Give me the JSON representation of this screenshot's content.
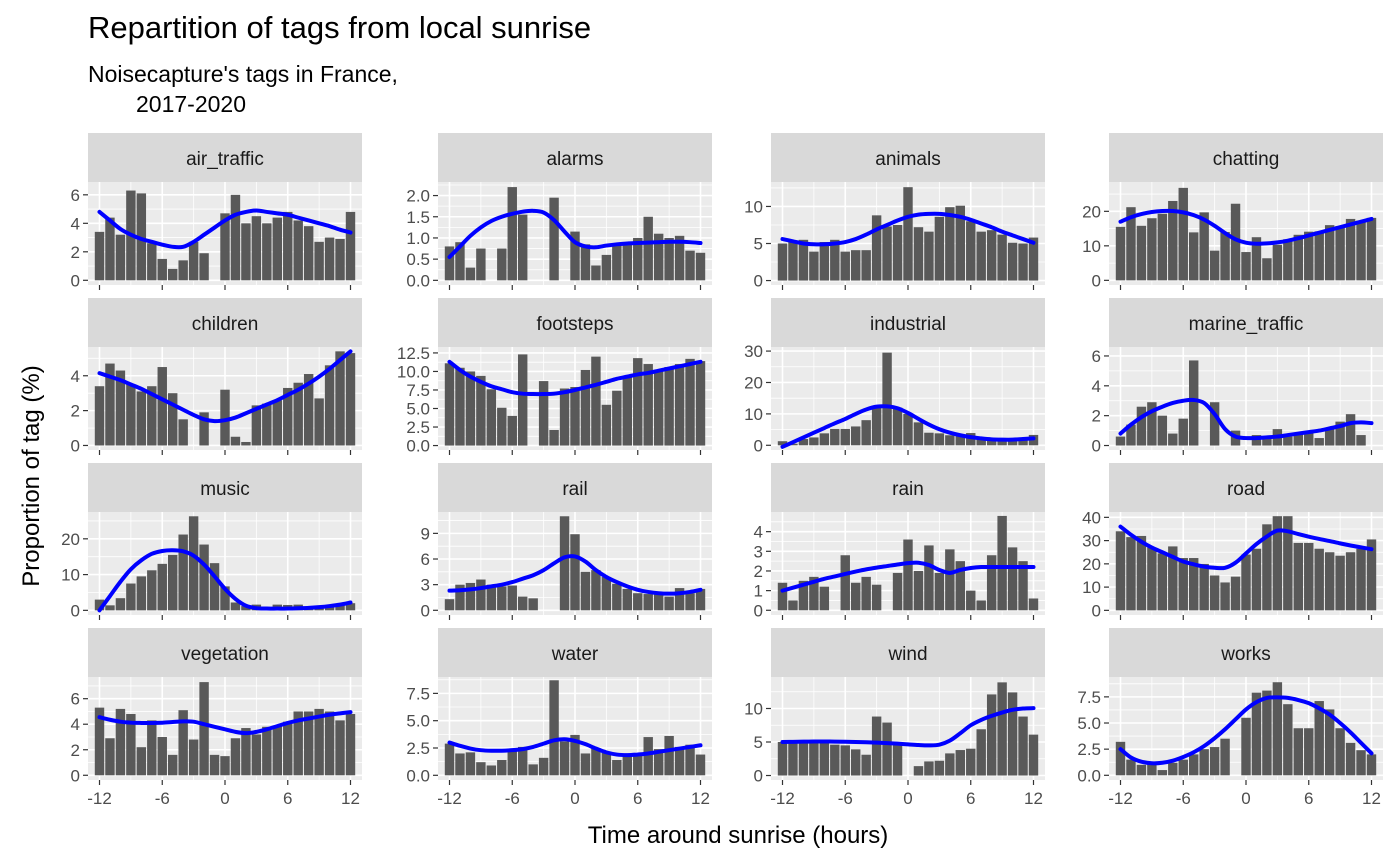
{
  "chart_data": {
    "type": "bar",
    "title": "Repartition of tags from local sunrise",
    "subtitle_lines": [
      "Noisecapture's tags in France,",
      "2017-2020"
    ],
    "xlabel": "Time around sunrise (hours)",
    "ylabel": "Proportion of tag (%)",
    "x_ticks": [
      -12,
      -6,
      0,
      6,
      12
    ],
    "x_tick_labels": [
      "-12",
      "-6",
      "0",
      "6",
      "12"
    ],
    "xlim": [
      -13.1,
      13.1
    ],
    "grid": true,
    "colors": {
      "bar": "#595959",
      "smooth": "#0000ff",
      "panel_bg": "#ebebeb",
      "grid": "#ffffff",
      "strip_bg": "#d9d9d9"
    },
    "x": [
      -12,
      -11,
      -10,
      -9,
      -8,
      -7,
      -6,
      -5,
      -4,
      -3,
      -2,
      -1,
      0,
      1,
      2,
      3,
      4,
      5,
      6,
      7,
      8,
      9,
      10,
      11,
      12
    ],
    "panels": [
      {
        "name": "air_traffic",
        "ylim": [
          -0.33,
          6.9
        ],
        "y_ticks": [
          0,
          2,
          4,
          6
        ],
        "y_tick_labels": [
          "0",
          "2",
          "4",
          "6"
        ],
        "values": [
          3.4,
          4.4,
          3.2,
          6.3,
          6.1,
          2.6,
          1.5,
          0.8,
          1.4,
          2.7,
          1.9,
          0.0,
          4.7,
          6.0,
          4.0,
          4.5,
          4.0,
          4.4,
          4.8,
          4.2,
          3.8,
          2.7,
          3.0,
          2.9,
          4.8
        ],
        "smooth": [
          4.8,
          4.2,
          3.6,
          3.2,
          2.9,
          2.7,
          2.5,
          2.35,
          2.35,
          2.7,
          3.2,
          3.7,
          4.2,
          4.6,
          4.8,
          4.9,
          4.8,
          4.7,
          4.6,
          4.4,
          4.2,
          4.0,
          3.8,
          3.55,
          3.35
        ]
      },
      {
        "name": "alarms",
        "ylim": [
          -0.11,
          2.32
        ],
        "y_ticks": [
          0,
          0.5,
          1,
          1.5,
          2
        ],
        "y_tick_labels": [
          "0.0",
          "0.5",
          "1.0",
          "1.5",
          "2.0"
        ],
        "values": [
          0.8,
          0.9,
          0.3,
          0.75,
          0.0,
          0.75,
          2.2,
          1.55,
          0.0,
          0.0,
          1.95,
          0.0,
          1.15,
          0.85,
          0.35,
          0.6,
          0.85,
          0.9,
          1.0,
          1.5,
          1.1,
          1.0,
          1.05,
          0.7,
          0.65
        ],
        "smooth": [
          0.55,
          0.8,
          1.05,
          1.25,
          1.4,
          1.5,
          1.57,
          1.62,
          1.64,
          1.6,
          1.42,
          1.15,
          0.9,
          0.8,
          0.78,
          0.82,
          0.85,
          0.87,
          0.88,
          0.89,
          0.9,
          0.91,
          0.91,
          0.9,
          0.88
        ]
      },
      {
        "name": "animals",
        "ylim": [
          -0.6,
          13.3
        ],
        "y_ticks": [
          0,
          5,
          10
        ],
        "y_tick_labels": [
          "0",
          "5",
          "10"
        ],
        "values": [
          5.0,
          5.2,
          5.5,
          3.9,
          5.2,
          5.5,
          3.9,
          4.1,
          4.1,
          8.8,
          7.3,
          7.5,
          12.6,
          7.2,
          6.6,
          8.6,
          9.9,
          10.1,
          8.0,
          6.6,
          6.8,
          6.2,
          5.1,
          5.0,
          5.8
        ],
        "smooth": [
          5.6,
          5.3,
          5.0,
          4.9,
          4.9,
          5.0,
          5.2,
          5.6,
          6.2,
          6.9,
          7.5,
          8.1,
          8.6,
          8.9,
          9.0,
          9.0,
          8.85,
          8.6,
          8.2,
          7.7,
          7.2,
          6.6,
          6.1,
          5.6,
          5.1
        ]
      },
      {
        "name": "chatting",
        "ylim": [
          -1.35,
          28.5
        ],
        "y_ticks": [
          0,
          10,
          20
        ],
        "y_tick_labels": [
          "0",
          "10",
          "20"
        ],
        "values": [
          15.5,
          21.2,
          15.8,
          18.0,
          19.3,
          23.0,
          26.8,
          13.9,
          19.7,
          8.6,
          14.0,
          22.2,
          8.2,
          12.5,
          6.4,
          10.3,
          11.9,
          13.2,
          14.1,
          14.2,
          16.0,
          15.7,
          17.8,
          17.3,
          18.1
        ],
        "smooth": [
          17.0,
          18.3,
          19.2,
          19.8,
          20.1,
          20.1,
          19.7,
          18.9,
          17.6,
          15.8,
          13.7,
          11.9,
          10.9,
          10.6,
          10.7,
          11.0,
          11.5,
          12.2,
          13.0,
          13.8,
          14.6,
          15.4,
          16.2,
          17.0,
          17.8
        ]
      },
      {
        "name": "children",
        "ylim": [
          -0.26,
          5.65
        ],
        "y_ticks": [
          0,
          2,
          4
        ],
        "y_tick_labels": [
          "0",
          "2",
          "4"
        ],
        "values": [
          3.4,
          4.7,
          4.3,
          3.5,
          3.1,
          3.4,
          4.5,
          3.0,
          1.5,
          0.0,
          1.9,
          0.0,
          3.2,
          0.5,
          0.2,
          2.3,
          2.4,
          2.6,
          3.3,
          3.6,
          4.1,
          2.7,
          4.6,
          5.4,
          5.3
        ],
        "smooth": [
          4.15,
          3.95,
          3.75,
          3.5,
          3.25,
          2.95,
          2.65,
          2.35,
          2.05,
          1.75,
          1.5,
          1.4,
          1.45,
          1.6,
          1.85,
          2.1,
          2.35,
          2.6,
          2.9,
          3.2,
          3.55,
          3.95,
          4.4,
          4.9,
          5.4
        ]
      },
      {
        "name": "footsteps",
        "ylim": [
          -0.6,
          13.3
        ],
        "y_ticks": [
          0,
          2.5,
          5,
          7.5,
          10,
          12.5
        ],
        "y_tick_labels": [
          "0.0",
          "2.5",
          "5.0",
          "7.5",
          "10.0",
          "12.5"
        ],
        "values": [
          11.1,
          10.5,
          10.0,
          9.4,
          7.6,
          5.1,
          4.0,
          12.3,
          0.0,
          8.7,
          2.1,
          7.7,
          7.9,
          10.2,
          12.0,
          5.5,
          7.4,
          9.2,
          11.8,
          11.0,
          10.1,
          10.6,
          11.0,
          11.7,
          11.4
        ],
        "smooth": [
          11.3,
          10.2,
          9.3,
          8.6,
          8.0,
          7.6,
          7.2,
          7.0,
          6.95,
          6.95,
          7.0,
          7.2,
          7.5,
          7.85,
          8.2,
          8.6,
          9.0,
          9.3,
          9.6,
          9.8,
          10.1,
          10.4,
          10.7,
          11.0,
          11.3
        ]
      },
      {
        "name": "industrial",
        "ylim": [
          -1.5,
          31.3
        ],
        "y_ticks": [
          0,
          10,
          20,
          30
        ],
        "y_tick_labels": [
          "0",
          "10",
          "20",
          "30"
        ],
        "values": [
          1.3,
          0.5,
          2.0,
          2.5,
          3.8,
          5.2,
          5.2,
          6.0,
          8.0,
          12.4,
          29.5,
          12.0,
          10.0,
          7.3,
          4.0,
          3.8,
          3.2,
          3.4,
          3.9,
          2.6,
          1.7,
          2.0,
          1.4,
          1.9,
          3.3
        ],
        "smooth": [
          -0.5,
          1.0,
          2.5,
          4.0,
          5.5,
          7.0,
          8.4,
          10.0,
          11.4,
          12.3,
          12.4,
          11.8,
          10.3,
          8.4,
          6.6,
          5.1,
          4.0,
          3.2,
          2.6,
          2.2,
          1.9,
          1.8,
          1.8,
          2.0,
          2.2
        ]
      },
      {
        "name": "marine_traffic",
        "ylim": [
          -0.3,
          6.6
        ],
        "y_ticks": [
          0,
          2,
          4,
          6
        ],
        "y_tick_labels": [
          "0",
          "2",
          "4",
          "6"
        ],
        "values": [
          0.6,
          1.4,
          2.6,
          2.9,
          2.0,
          0.8,
          1.8,
          5.7,
          0.0,
          2.9,
          0.0,
          1.0,
          0.0,
          0.7,
          0.5,
          1.1,
          0.6,
          0.8,
          0.9,
          0.5,
          1.2,
          1.6,
          2.1,
          0.7,
          0.0
        ],
        "smooth": [
          0.8,
          1.4,
          1.9,
          2.3,
          2.6,
          2.85,
          3.0,
          3.05,
          2.85,
          2.1,
          1.1,
          0.6,
          0.5,
          0.5,
          0.55,
          0.6,
          0.7,
          0.8,
          0.9,
          1.0,
          1.15,
          1.3,
          1.5,
          1.55,
          1.5
        ]
      },
      {
        "name": "music",
        "ylim": [
          -1.3,
          27.5
        ],
        "y_ticks": [
          0,
          10,
          20
        ],
        "y_tick_labels": [
          "0",
          "10",
          "20"
        ],
        "values": [
          3.0,
          1.4,
          3.4,
          7.5,
          9.5,
          11.2,
          13.0,
          15.5,
          21.2,
          26.3,
          18.4,
          13.2,
          6.7,
          2.2,
          1.2,
          1.6,
          0.8,
          1.6,
          1.5,
          1.6,
          0.7,
          1.2,
          1.5,
          1.8,
          2.0
        ],
        "smooth": [
          0.0,
          4.0,
          8.0,
          11.5,
          14.0,
          15.8,
          16.6,
          16.8,
          16.5,
          15.3,
          12.8,
          9.5,
          6.0,
          3.2,
          1.3,
          0.6,
          0.5,
          0.5,
          0.5,
          0.6,
          0.7,
          0.9,
          1.2,
          1.6,
          2.2
        ]
      },
      {
        "name": "rail",
        "ylim": [
          -0.55,
          11.5
        ],
        "y_ticks": [
          0,
          3,
          6,
          9
        ],
        "y_tick_labels": [
          "0",
          "3",
          "6",
          "9"
        ],
        "values": [
          1.3,
          3.0,
          3.2,
          3.6,
          3.0,
          2.8,
          2.9,
          1.6,
          1.4,
          0.0,
          0.0,
          11.0,
          8.9,
          4.5,
          4.7,
          3.9,
          3.1,
          2.5,
          2.0,
          1.9,
          2.0,
          1.6,
          2.6,
          2.0,
          2.5
        ],
        "smooth": [
          2.3,
          2.35,
          2.45,
          2.6,
          2.8,
          3.0,
          3.3,
          3.7,
          4.1,
          4.7,
          5.5,
          6.2,
          6.3,
          5.7,
          4.7,
          3.9,
          3.3,
          2.8,
          2.4,
          2.15,
          2.0,
          1.95,
          2.0,
          2.15,
          2.4
        ]
      },
      {
        "name": "rain",
        "ylim": [
          -0.24,
          5.0
        ],
        "y_ticks": [
          0,
          1,
          2,
          3,
          4
        ],
        "y_tick_labels": [
          "0",
          "1",
          "2",
          "3",
          "4"
        ],
        "values": [
          1.4,
          0.5,
          1.5,
          1.7,
          1.2,
          0.0,
          2.8,
          1.4,
          1.7,
          1.3,
          0.0,
          1.9,
          3.6,
          2.0,
          3.3,
          1.9,
          3.1,
          2.5,
          1.0,
          0.5,
          2.8,
          4.8,
          3.2,
          2.5,
          0.6
        ],
        "smooth": [
          1.0,
          1.15,
          1.3,
          1.45,
          1.6,
          1.72,
          1.85,
          1.97,
          2.08,
          2.17,
          2.25,
          2.33,
          2.4,
          2.42,
          2.3,
          2.05,
          1.9,
          2.05,
          2.15,
          2.2,
          2.2,
          2.2,
          2.2,
          2.2,
          2.2
        ]
      },
      {
        "name": "road",
        "ylim": [
          -2.0,
          42.3
        ],
        "y_ticks": [
          0,
          10,
          20,
          30,
          40
        ],
        "y_tick_labels": [
          "0",
          "10",
          "20",
          "30",
          "40"
        ],
        "values": [
          34.0,
          31.5,
          32.0,
          27.0,
          24.5,
          27.5,
          22.5,
          22.5,
          20.0,
          15.0,
          12.0,
          14.5,
          24.0,
          26.5,
          37.0,
          40.5,
          40.5,
          29.0,
          29.0,
          26.5,
          25.0,
          23.5,
          25.0,
          26.5,
          30.5
        ],
        "smooth": [
          36.0,
          32.5,
          29.5,
          27.0,
          25.0,
          23.0,
          21.0,
          19.8,
          18.8,
          18.3,
          18.3,
          20.5,
          24.5,
          28.5,
          31.8,
          34.3,
          34.0,
          32.8,
          31.7,
          30.7,
          29.8,
          28.8,
          27.9,
          27.1,
          26.3
        ]
      },
      {
        "name": "vegetation",
        "ylim": [
          -0.37,
          7.7
        ],
        "y_ticks": [
          0,
          2,
          4,
          6
        ],
        "y_tick_labels": [
          "0",
          "2",
          "4",
          "6"
        ],
        "values": [
          5.3,
          2.9,
          5.2,
          4.8,
          2.2,
          4.3,
          3.0,
          1.6,
          5.1,
          2.8,
          7.3,
          1.6,
          1.5,
          2.9,
          3.7,
          3.2,
          3.8,
          3.9,
          4.2,
          5.0,
          5.0,
          5.2,
          5.0,
          4.3,
          4.8
        ],
        "smooth": [
          4.55,
          4.35,
          4.2,
          4.12,
          4.1,
          4.1,
          4.12,
          4.17,
          4.22,
          4.2,
          4.0,
          3.8,
          3.6,
          3.4,
          3.3,
          3.4,
          3.6,
          3.85,
          4.1,
          4.3,
          4.45,
          4.6,
          4.75,
          4.85,
          4.95
        ]
      },
      {
        "name": "water",
        "ylim": [
          -0.43,
          9.0
        ],
        "y_ticks": [
          0,
          2.5,
          5,
          7.5
        ],
        "y_tick_labels": [
          "0.0",
          "2.5",
          "5.0",
          "7.5"
        ],
        "values": [
          2.9,
          2.0,
          2.1,
          1.2,
          0.9,
          1.4,
          2.3,
          2.6,
          1.0,
          1.6,
          8.7,
          3.1,
          3.7,
          2.0,
          2.5,
          2.1,
          1.4,
          1.8,
          1.9,
          3.5,
          2.4,
          3.6,
          2.6,
          2.8,
          1.9
        ],
        "smooth": [
          3.0,
          2.7,
          2.45,
          2.3,
          2.25,
          2.25,
          2.3,
          2.4,
          2.6,
          2.9,
          3.2,
          3.3,
          3.15,
          2.85,
          2.45,
          2.1,
          1.9,
          1.85,
          1.9,
          2.0,
          2.15,
          2.3,
          2.45,
          2.6,
          2.75
        ]
      },
      {
        "name": "wind",
        "ylim": [
          -0.67,
          14.7
        ],
        "y_ticks": [
          0,
          5,
          10
        ],
        "y_tick_labels": [
          "0",
          "5",
          "10"
        ],
        "values": [
          5.0,
          5.0,
          5.1,
          5.3,
          5.2,
          4.6,
          4.5,
          3.9,
          3.1,
          8.8,
          7.9,
          5.0,
          0.0,
          1.4,
          2.1,
          2.2,
          3.3,
          3.8,
          4.0,
          6.9,
          12.1,
          13.9,
          12.4,
          8.8,
          6.1
        ],
        "smooth": [
          5.0,
          5.02,
          5.05,
          5.07,
          5.07,
          5.06,
          5.04,
          5.0,
          4.96,
          4.9,
          4.83,
          4.75,
          4.65,
          4.55,
          4.5,
          4.6,
          5.2,
          6.3,
          7.5,
          8.3,
          8.9,
          9.4,
          9.8,
          10.0,
          10.05
        ]
      },
      {
        "name": "works",
        "ylim": [
          -0.45,
          9.4
        ],
        "y_ticks": [
          0,
          2.5,
          5,
          7.5
        ],
        "y_tick_labels": [
          "0.0",
          "2.5",
          "5.0",
          "7.5"
        ],
        "values": [
          3.2,
          1.5,
          1.0,
          1.3,
          0.5,
          1.2,
          1.5,
          2.0,
          2.5,
          2.7,
          3.5,
          0.0,
          5.5,
          7.9,
          8.1,
          8.9,
          6.8,
          4.5,
          4.5,
          7.1,
          6.3,
          4.5,
          3.1,
          2.4,
          2.0
        ],
        "smooth": [
          2.5,
          1.7,
          1.3,
          1.15,
          1.2,
          1.4,
          1.75,
          2.2,
          2.8,
          3.55,
          4.4,
          5.35,
          6.3,
          7.0,
          7.4,
          7.45,
          7.4,
          7.2,
          6.9,
          6.4,
          5.8,
          5.0,
          4.1,
          3.1,
          2.1
        ]
      }
    ]
  }
}
